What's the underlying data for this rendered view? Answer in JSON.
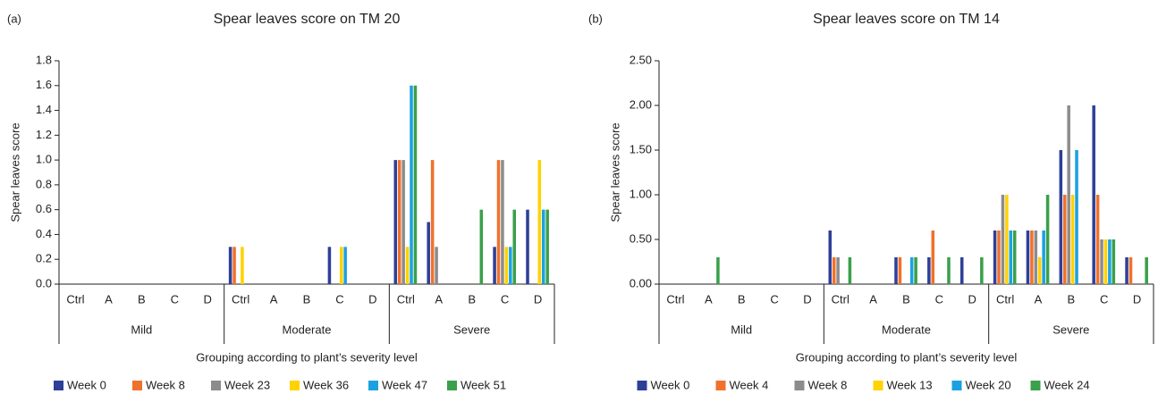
{
  "chart_data": [
    {
      "type": "bar",
      "panel": "(a)",
      "title": "Spear leaves score on TM 20",
      "ylabel": "Spear leaves score",
      "xlabel": "Grouping according to plant’s severity level",
      "groups": [
        {
          "name": "Mild",
          "categories": [
            "Ctrl",
            "A",
            "B",
            "C",
            "D"
          ]
        },
        {
          "name": "Moderate",
          "categories": [
            "Ctrl",
            "A",
            "B",
            "C",
            "D"
          ]
        },
        {
          "name": "Severe",
          "categories": [
            "Ctrl",
            "A",
            "B",
            "C",
            "D"
          ]
        }
      ],
      "ylim": [
        0,
        1.8
      ],
      "yticks": [
        {
          "value": 0,
          "label": "0.0"
        },
        0.2,
        0.4,
        0.6,
        0.8,
        {
          "value": 1,
          "label": "1.0"
        },
        1.2,
        1.4,
        1.6,
        1.8
      ],
      "series": [
        {
          "name": "Week 0",
          "color": "#2e3f98",
          "values": [
            0,
            0,
            0,
            0,
            0,
            0.3,
            0,
            0,
            0.3,
            0,
            1.0,
            0.5,
            0,
            0.3,
            0.6
          ]
        },
        {
          "name": "Week 8",
          "color": "#f0712c",
          "values": [
            0,
            0,
            0,
            0,
            0,
            0.3,
            0,
            0,
            0,
            0,
            1.0,
            1.0,
            0,
            1.0,
            0
          ]
        },
        {
          "name": "Week 23",
          "color": "#8c8c8c",
          "values": [
            0,
            0,
            0,
            0,
            0,
            0,
            0,
            0,
            0,
            0,
            1.0,
            0.3,
            0,
            1.0,
            0
          ]
        },
        {
          "name": "Week 36",
          "color": "#ffd200",
          "values": [
            0,
            0,
            0,
            0,
            0,
            0.3,
            0,
            0,
            0.3,
            0,
            0.3,
            0,
            0,
            0.3,
            1.0
          ]
        },
        {
          "name": "Week 47",
          "color": "#1ba1e2",
          "values": [
            0,
            0,
            0,
            0,
            0,
            0,
            0,
            0,
            0.3,
            0,
            1.6,
            0,
            0,
            0.3,
            0.6
          ]
        },
        {
          "name": "Week 51",
          "color": "#3aa04a",
          "values": [
            0,
            0,
            0,
            0,
            0,
            0,
            0,
            0,
            0,
            0,
            1.6,
            0,
            0.6,
            0.6,
            0.6
          ]
        }
      ]
    },
    {
      "type": "bar",
      "panel": "(b)",
      "title": "Spear leaves score on TM 14",
      "ylabel": "Spear leaves score",
      "xlabel": "Grouping according to plant’s severity level",
      "groups": [
        {
          "name": "Mild",
          "categories": [
            "Ctrl",
            "A",
            "B",
            "C",
            "D"
          ]
        },
        {
          "name": "Moderate",
          "categories": [
            "Ctrl",
            "A",
            "B",
            "C",
            "D"
          ]
        },
        {
          "name": "Severe",
          "categories": [
            "Ctrl",
            "A",
            "B",
            "C",
            "D"
          ]
        }
      ],
      "ylim": [
        0,
        2.5
      ],
      "yticks": [
        {
          "value": 0,
          "label": "0.00"
        },
        {
          "value": 0.5,
          "label": "0.50"
        },
        {
          "value": 1,
          "label": "1.00"
        },
        {
          "value": 1.5,
          "label": "1.50"
        },
        {
          "value": 2,
          "label": "2.00"
        },
        {
          "value": 2.5,
          "label": "2.50"
        }
      ],
      "series": [
        {
          "name": "Week 0",
          "color": "#2e3f98",
          "values": [
            0,
            0,
            0,
            0,
            0,
            0.6,
            0,
            0.3,
            0.3,
            0.3,
            0.6,
            0.6,
            1.5,
            2.0,
            0.3
          ]
        },
        {
          "name": "Week 4",
          "color": "#f0712c",
          "values": [
            0,
            0,
            0,
            0,
            0,
            0.3,
            0,
            0.3,
            0.6,
            0,
            0.6,
            0.6,
            1.0,
            1.0,
            0.3
          ]
        },
        {
          "name": "Week 8",
          "color": "#8c8c8c",
          "values": [
            0,
            0,
            0,
            0,
            0,
            0.3,
            0,
            0,
            0,
            0,
            1.0,
            0.6,
            2.0,
            0.5,
            0
          ]
        },
        {
          "name": "Week 13",
          "color": "#ffd200",
          "values": [
            0,
            0,
            0,
            0,
            0,
            0,
            0,
            0,
            0,
            0,
            1.0,
            0.3,
            1.0,
            0.5,
            0
          ]
        },
        {
          "name": "Week 20",
          "color": "#1ba1e2",
          "values": [
            0,
            0,
            0,
            0,
            0,
            0,
            0,
            0.3,
            0,
            0,
            0.6,
            0.6,
            1.5,
            0.5,
            0
          ]
        },
        {
          "name": "Week 24",
          "color": "#3aa04a",
          "values": [
            0,
            0.3,
            0,
            0,
            0,
            0.3,
            0,
            0.3,
            0.3,
            0.3,
            0.6,
            1.0,
            0,
            0.5,
            0.3
          ]
        }
      ]
    }
  ]
}
